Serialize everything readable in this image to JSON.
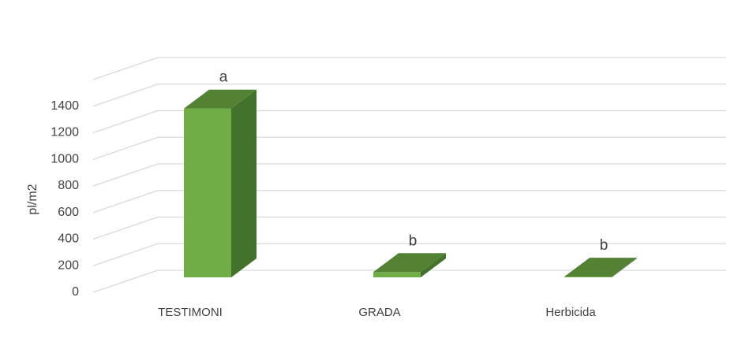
{
  "chart_data": {
    "type": "bar3d",
    "y_label": "pl/m2",
    "categories": [
      "TESTIMONI",
      "GRADA",
      "Herbicida"
    ],
    "values": [
      1270,
      40,
      5
    ],
    "annotations": [
      "a",
      "b",
      "b"
    ],
    "colors": {
      "front": "#70ad47",
      "top": "#548235",
      "side": "#43722c"
    },
    "ylim": [
      0,
      1600
    ],
    "yticks": [
      0,
      200,
      400,
      600,
      800,
      1000,
      1200,
      1400
    ],
    "grid": true
  }
}
